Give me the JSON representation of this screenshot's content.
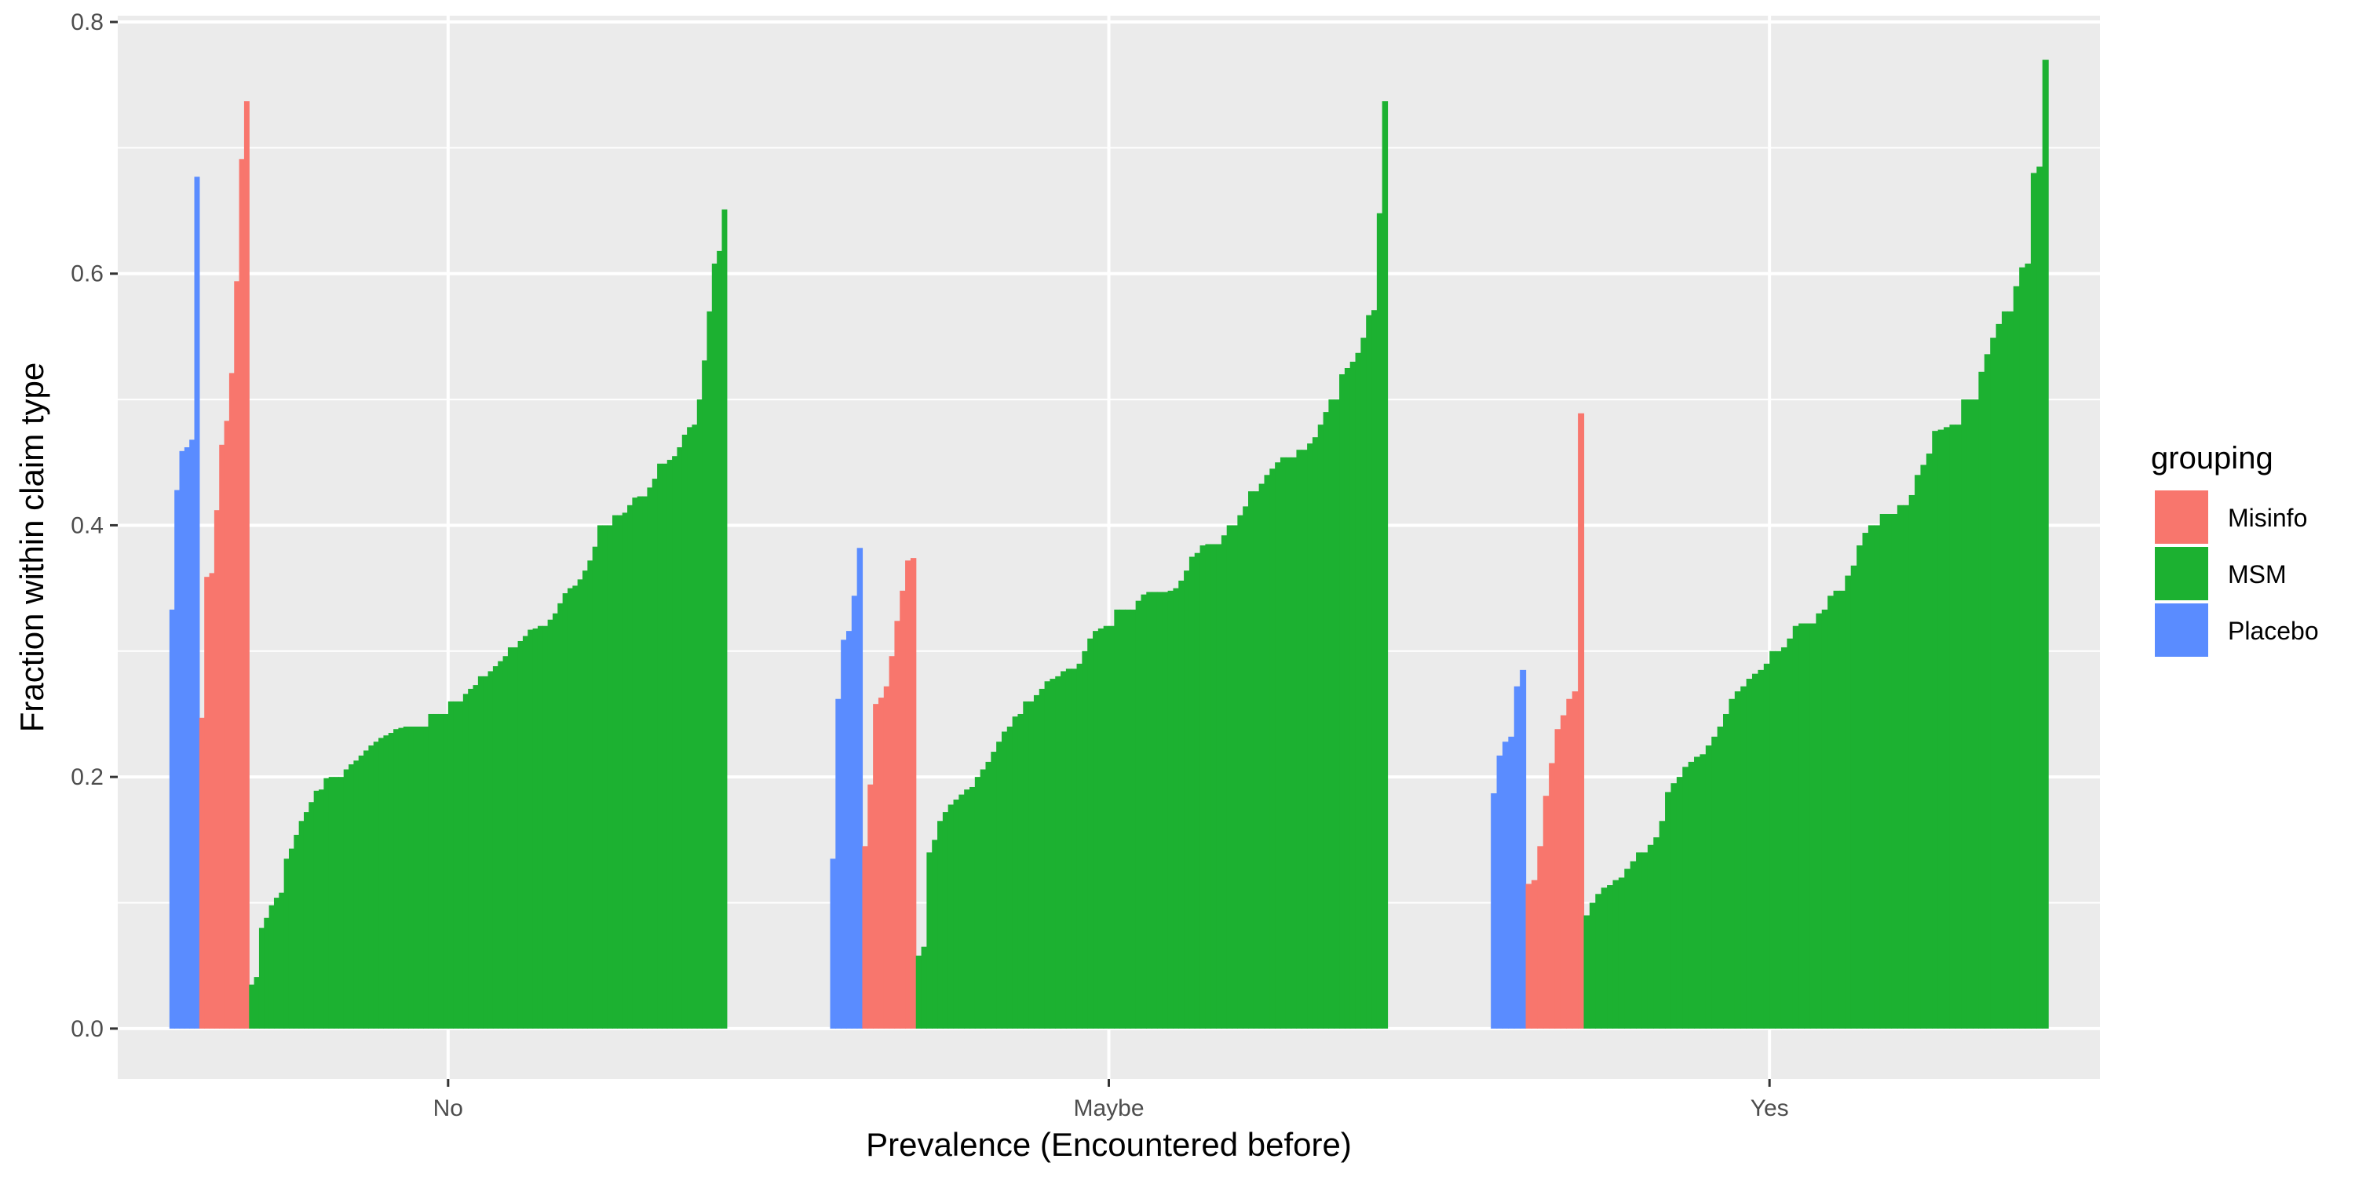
{
  "chart_data": {
    "type": "bar",
    "xlabel": "Prevalence (Encountered before)",
    "ylabel": "Fraction within claim type",
    "ylim": [
      -0.04,
      0.805
    ],
    "yticks": [
      0.0,
      0.2,
      0.4,
      0.6,
      0.8
    ],
    "ytick_labels": [
      "0.0",
      "0.2",
      "0.4",
      "0.6",
      "0.8"
    ],
    "grid": true,
    "legend": {
      "title": "grouping",
      "position": "right",
      "items": [
        {
          "label": "Misinfo",
          "color": "#F8766D"
        },
        {
          "label": "MSM",
          "color": "#1CB131"
        },
        {
          "label": "Placebo",
          "color": "#5A8CFF"
        }
      ]
    },
    "categories": [
      "No",
      "Maybe",
      "Yes"
    ],
    "series": [
      {
        "name": "Placebo",
        "color": "#5A8CFF",
        "values": [
          [
            0.333,
            0.428,
            0.459,
            0.462,
            0.468,
            0.677
          ],
          [
            0.135,
            0.262,
            0.309,
            0.316,
            0.344,
            0.382
          ],
          [
            0.187,
            0.217,
            0.228,
            0.232,
            0.272,
            0.285
          ]
        ]
      },
      {
        "name": "Misinfo",
        "color": "#F8766D",
        "values": [
          [
            0.247,
            0.359,
            0.362,
            0.412,
            0.464,
            0.483,
            0.521,
            0.594,
            0.691,
            0.737
          ],
          [
            0.145,
            0.194,
            0.258,
            0.263,
            0.272,
            0.296,
            0.324,
            0.348,
            0.372,
            0.374
          ],
          [
            0.115,
            0.118,
            0.145,
            0.185,
            0.211,
            0.238,
            0.249,
            0.262,
            0.268,
            0.489
          ]
        ]
      },
      {
        "name": "MSM",
        "color": "#1CB131",
        "values": [
          [
            0.035,
            0.041,
            0.08,
            0.088,
            0.098,
            0.104,
            0.108,
            0.135,
            0.143,
            0.154,
            0.165,
            0.172,
            0.18,
            0.189,
            0.19,
            0.199,
            0.2,
            0.2,
            0.2,
            0.206,
            0.21,
            0.213,
            0.217,
            0.221,
            0.225,
            0.228,
            0.231,
            0.233,
            0.235,
            0.238,
            0.239,
            0.24,
            0.24,
            0.24,
            0.24,
            0.24,
            0.25,
            0.25,
            0.25,
            0.25,
            0.26,
            0.26,
            0.26,
            0.266,
            0.27,
            0.273,
            0.28,
            0.28,
            0.284,
            0.288,
            0.292,
            0.296,
            0.303,
            0.303,
            0.308,
            0.312,
            0.317,
            0.318,
            0.32,
            0.32,
            0.325,
            0.33,
            0.338,
            0.346,
            0.35,
            0.352,
            0.357,
            0.364,
            0.372,
            0.383,
            0.4,
            0.4,
            0.4,
            0.408,
            0.408,
            0.41,
            0.416,
            0.422,
            0.423,
            0.423,
            0.43,
            0.437,
            0.449,
            0.449,
            0.452,
            0.455,
            0.462,
            0.472,
            0.478,
            0.48,
            0.5,
            0.531,
            0.57,
            0.608,
            0.618,
            0.651
          ],
          [
            0.058,
            0.065,
            0.14,
            0.15,
            0.165,
            0.172,
            0.178,
            0.182,
            0.186,
            0.19,
            0.192,
            0.2,
            0.206,
            0.212,
            0.22,
            0.228,
            0.236,
            0.24,
            0.248,
            0.25,
            0.26,
            0.26,
            0.265,
            0.27,
            0.276,
            0.278,
            0.28,
            0.284,
            0.286,
            0.286,
            0.29,
            0.3,
            0.31,
            0.316,
            0.318,
            0.32,
            0.32,
            0.333,
            0.333,
            0.333,
            0.333,
            0.34,
            0.345,
            0.347,
            0.347,
            0.347,
            0.347,
            0.348,
            0.35,
            0.356,
            0.364,
            0.375,
            0.378,
            0.384,
            0.385,
            0.385,
            0.385,
            0.392,
            0.4,
            0.4,
            0.408,
            0.415,
            0.427,
            0.427,
            0.433,
            0.44,
            0.445,
            0.45,
            0.454,
            0.454,
            0.454,
            0.46,
            0.46,
            0.465,
            0.47,
            0.48,
            0.49,
            0.5,
            0.5,
            0.52,
            0.525,
            0.53,
            0.537,
            0.549,
            0.567,
            0.571,
            0.648,
            0.737
          ],
          [
            0.09,
            0.1,
            0.107,
            0.112,
            0.114,
            0.118,
            0.12,
            0.127,
            0.133,
            0.14,
            0.14,
            0.146,
            0.152,
            0.165,
            0.188,
            0.195,
            0.2,
            0.208,
            0.212,
            0.216,
            0.218,
            0.225,
            0.232,
            0.24,
            0.25,
            0.262,
            0.268,
            0.272,
            0.278,
            0.282,
            0.285,
            0.29,
            0.3,
            0.3,
            0.303,
            0.31,
            0.32,
            0.322,
            0.322,
            0.322,
            0.33,
            0.333,
            0.344,
            0.348,
            0.348,
            0.36,
            0.368,
            0.384,
            0.394,
            0.4,
            0.4,
            0.409,
            0.409,
            0.409,
            0.416,
            0.416,
            0.424,
            0.44,
            0.448,
            0.457,
            0.475,
            0.476,
            0.478,
            0.48,
            0.48,
            0.5,
            0.5,
            0.5,
            0.522,
            0.536,
            0.549,
            0.56,
            0.57,
            0.57,
            0.59,
            0.605,
            0.608,
            0.68,
            0.685,
            0.77
          ]
        ]
      }
    ]
  }
}
